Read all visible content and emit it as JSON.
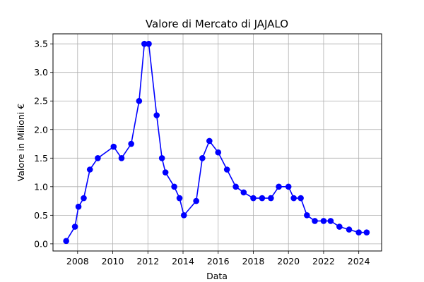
{
  "chart_data": {
    "type": "line",
    "title": "Valore di Mercato di JAJALO",
    "xlabel": "Data",
    "ylabel": "Valore in Milioni €",
    "xlim": [
      2006.6,
      2025.3
    ],
    "ylim": [
      -0.125,
      3.675
    ],
    "xticks": [
      2008,
      2010,
      2012,
      2014,
      2016,
      2018,
      2020,
      2022,
      2024
    ],
    "xtick_labels": [
      "2008",
      "2010",
      "2012",
      "2014",
      "2016",
      "2018",
      "2020",
      "2022",
      "2024"
    ],
    "yticks": [
      0.0,
      0.5,
      1.0,
      1.5,
      2.0,
      2.5,
      3.0,
      3.5
    ],
    "ytick_labels": [
      "0.0",
      "0.5",
      "1.0",
      "1.5",
      "2.0",
      "2.5",
      "3.0",
      "3.5"
    ],
    "grid": true,
    "color": "#0000ff",
    "series": [
      {
        "x": [
          2007.35,
          2007.85,
          2008.05,
          2008.35,
          2008.7,
          2009.15,
          2010.05,
          2010.5,
          2011.05,
          2011.5,
          2011.8,
          2012.05,
          2012.5,
          2012.8,
          2013.0,
          2013.5,
          2013.8,
          2014.05,
          2014.75,
          2015.1,
          2015.5,
          2016.0,
          2016.5,
          2017.0,
          2017.45,
          2018.0,
          2018.5,
          2019.0,
          2019.45,
          2020.0,
          2020.3,
          2020.7,
          2021.05,
          2021.5,
          2022.0,
          2022.4,
          2022.9,
          2023.45,
          2024.0,
          2024.45
        ],
        "values": [
          0.05,
          0.3,
          0.65,
          0.8,
          1.3,
          1.5,
          1.7,
          1.5,
          1.75,
          2.5,
          3.5,
          3.5,
          2.25,
          1.5,
          1.25,
          1.0,
          0.8,
          0.5,
          0.75,
          1.5,
          1.8,
          1.6,
          1.3,
          1.0,
          0.9,
          0.8,
          0.8,
          0.8,
          1.0,
          1.0,
          0.8,
          0.8,
          0.5,
          0.4,
          0.4,
          0.4,
          0.3,
          0.25,
          0.2,
          0.2
        ]
      }
    ]
  }
}
